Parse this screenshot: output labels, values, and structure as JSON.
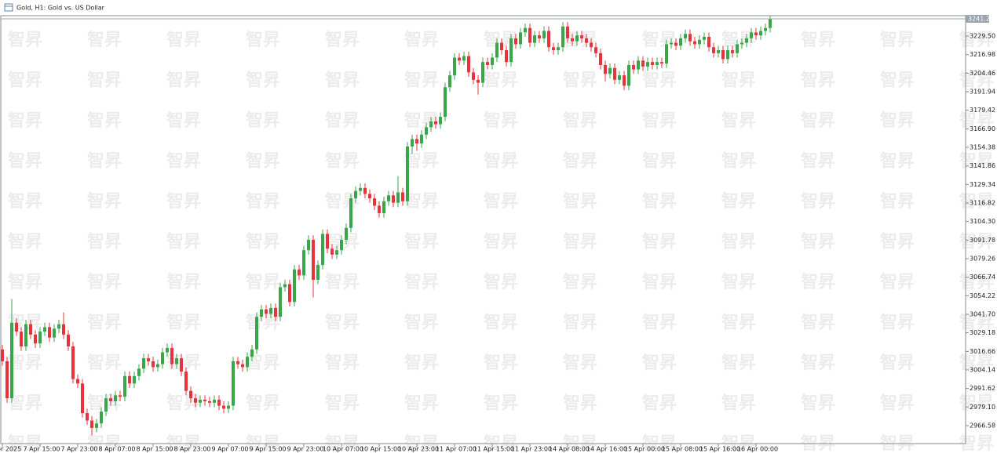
{
  "chart_data": {
    "type": "candlestick",
    "title": "Gold, H1: Gold vs. US Dollar",
    "watermark": "智昇",
    "bull_color": "#3aa64a",
    "bear_color": "#e8323c",
    "ylim": [
      2954.4,
      3243.3
    ],
    "yticks": [
      {
        "value": 3229.5,
        "label": "3229.50"
      },
      3216.98,
      3204.46,
      3191.94,
      3179.42,
      {
        "value": 3166.9,
        "label": "3166.90"
      },
      3154.38,
      3141.86,
      3129.34,
      3116.82,
      {
        "value": 3104.3,
        "label": "3104.30"
      },
      3091.78,
      3079.26,
      3066.74,
      3054.22,
      {
        "value": 3041.7,
        "label": "3041.70"
      },
      3029.18,
      3016.66,
      3004.14,
      2991.62,
      {
        "value": 2979.1,
        "label": "2979.10"
      },
      2966.58
    ],
    "price_line": {
      "value": 3241.2,
      "label": "3241.20"
    },
    "categories": [
      "7 Apr 2025",
      null,
      null,
      null,
      null,
      null,
      null,
      null,
      "7 Apr 15:00",
      null,
      null,
      null,
      null,
      null,
      null,
      null,
      "7 Apr 23:00",
      null,
      null,
      null,
      null,
      null,
      null,
      null,
      "8 Apr 07:00",
      null,
      null,
      null,
      null,
      null,
      null,
      null,
      "8 Apr 15:00",
      null,
      null,
      null,
      null,
      null,
      null,
      null,
      "8 Apr 23:00",
      null,
      null,
      null,
      null,
      null,
      null,
      null,
      "9 Apr 07:00",
      null,
      null,
      null,
      null,
      null,
      null,
      null,
      "9 Apr 15:00",
      null,
      null,
      null,
      null,
      null,
      null,
      null,
      "9 Apr 23:00",
      null,
      null,
      null,
      null,
      null,
      null,
      null,
      "10 Apr 07:00",
      null,
      null,
      null,
      null,
      null,
      null,
      null,
      "10 Apr 15:00",
      null,
      null,
      null,
      null,
      null,
      null,
      null,
      "10 Apr 23:00",
      null,
      null,
      null,
      null,
      null,
      null,
      null,
      "11 Apr 07:00",
      null,
      null,
      null,
      null,
      null,
      null,
      null,
      "11 Apr 15:00",
      null,
      null,
      null,
      null,
      null,
      null,
      null,
      "11 Apr 23:00",
      null,
      null,
      null,
      null,
      null,
      null,
      null,
      "14 Apr 08:00",
      null,
      null,
      null,
      null,
      null,
      null,
      null,
      "14 Apr 16:00",
      null,
      null,
      null,
      null,
      null,
      null,
      null,
      "15 Apr 00:00",
      null,
      null,
      null,
      null,
      null,
      null,
      null,
      "15 Apr 08:00",
      null,
      null,
      null,
      null,
      null,
      null,
      null,
      "15 Apr 16:00",
      null,
      null,
      null,
      null,
      null,
      null,
      null,
      "16 Apr 00:00",
      null,
      null,
      null
    ],
    "open": [
      3018,
      3010,
      2985,
      3036,
      3030,
      3020,
      3035,
      3028,
      3022,
      3030,
      3033,
      3026,
      3032,
      3035,
      3028,
      3020,
      2998,
      2995,
      2975,
      2970,
      2965,
      2968,
      2976,
      2985,
      2983,
      2987,
      2986,
      3000,
      2995,
      3000,
      3005,
      3012,
      3010,
      3006,
      3008,
      3016,
      3019,
      3008,
      3012,
      3003,
      2990,
      2985,
      2982,
      2984,
      2983,
      2982,
      2984,
      2980,
      2978,
      2980,
      3010,
      3008,
      3006,
      3013,
      3018,
      3040,
      3045,
      3042,
      3046,
      3040,
      3060,
      3062,
      3050,
      3072,
      3068,
      3085,
      3092,
      3065,
      3075,
      3096,
      3086,
      3082,
      3085,
      3092,
      3100,
      3120,
      3125,
      3127,
      3123,
      3120,
      3115,
      3110,
      3118,
      3122,
      3117,
      3124,
      3118,
      3155,
      3160,
      3157,
      3163,
      3168,
      3172,
      3170,
      3175,
      3195,
      3203,
      3215,
      3213,
      3216,
      3205,
      3200,
      3198,
      3212,
      3210,
      3215,
      3225,
      3220,
      3212,
      3228,
      3224,
      3232,
      3235,
      3225,
      3230,
      3228,
      3233,
      3222,
      3220,
      3222,
      3236,
      3228,
      3226,
      3230,
      3228,
      3225,
      3222,
      3218,
      3210,
      3204,
      3208,
      3200,
      3203,
      3196,
      3210,
      3207,
      3213,
      3209,
      3212,
      3210,
      3212,
      3211,
      3224,
      3225,
      3223,
      3228,
      3231,
      3226,
      3224,
      3227,
      3229,
      3222,
      3218,
      3220,
      3214,
      3220,
      3218,
      3224,
      3225,
      3228,
      3232,
      3230,
      3233,
      3235
    ],
    "high": [
      3021,
      3013,
      3052,
      3039,
      3033,
      3038,
      3038,
      3031,
      3033,
      3036,
      3036,
      3035,
      3038,
      3043,
      3031,
      3023,
      3001,
      2998,
      2978,
      2973,
      2971,
      2979,
      2988,
      2988,
      2990,
      2990,
      3003,
      3003,
      3003,
      3008,
      3015,
      3015,
      3013,
      3011,
      3019,
      3022,
      3022,
      3015,
      3015,
      3006,
      2993,
      2988,
      2987,
      2987,
      2986,
      2987,
      2987,
      2983,
      2983,
      3013,
      3013,
      3011,
      3016,
      3021,
      3043,
      3048,
      3048,
      3049,
      3049,
      3063,
      3065,
      3065,
      3075,
      3075,
      3088,
      3095,
      3095,
      3078,
      3099,
      3099,
      3089,
      3088,
      3095,
      3103,
      3123,
      3128,
      3130,
      3130,
      3126,
      3123,
      3118,
      3121,
      3125,
      3125,
      3135,
      3127,
      3158,
      3163,
      3163,
      3166,
      3171,
      3175,
      3175,
      3178,
      3198,
      3206,
      3218,
      3218,
      3219,
      3219,
      3208,
      3203,
      3215,
      3215,
      3218,
      3228,
      3228,
      3223,
      3231,
      3231,
      3235,
      3238,
      3238,
      3233,
      3233,
      3236,
      3236,
      3225,
      3225,
      3239,
      3239,
      3231,
      3233,
      3233,
      3231,
      3228,
      3225,
      3221,
      3213,
      3211,
      3211,
      3206,
      3206,
      3213,
      3213,
      3216,
      3216,
      3215,
      3215,
      3215,
      3215,
      3227,
      3228,
      3228,
      3231,
      3234,
      3234,
      3229,
      3230,
      3232,
      3232,
      3225,
      3223,
      3223,
      3223,
      3223,
      3227,
      3228,
      3231,
      3235,
      3235,
      3236,
      3238,
      3243
    ],
    "low": [
      3007,
      2982,
      2982,
      3027,
      3017,
      3017,
      3025,
      3019,
      3019,
      3027,
      3023,
      3023,
      3029,
      3025,
      3017,
      2995,
      2992,
      2972,
      2967,
      2960,
      2962,
      2965,
      2973,
      2980,
      2980,
      2983,
      2983,
      2992,
      2992,
      2997,
      3002,
      3007,
      3003,
      3003,
      3005,
      3013,
      3005,
      3005,
      3000,
      2987,
      2982,
      2979,
      2979,
      2980,
      2979,
      2979,
      2977,
      2975,
      2975,
      2977,
      3005,
      3003,
      3003,
      3010,
      3015,
      3037,
      3039,
      3039,
      3037,
      3037,
      3057,
      3047,
      3047,
      3065,
      3065,
      3082,
      3053,
      3062,
      3072,
      3083,
      3079,
      3079,
      3082,
      3089,
      3097,
      3117,
      3122,
      3120,
      3117,
      3112,
      3107,
      3107,
      3115,
      3114,
      3114,
      3115,
      3115,
      3150,
      3152,
      3154,
      3160,
      3165,
      3167,
      3167,
      3172,
      3192,
      3200,
      3210,
      3210,
      3202,
      3197,
      3190,
      3195,
      3207,
      3207,
      3212,
      3217,
      3209,
      3209,
      3221,
      3221,
      3229,
      3222,
      3222,
      3225,
      3225,
      3219,
      3217,
      3217,
      3219,
      3225,
      3223,
      3223,
      3225,
      3222,
      3219,
      3215,
      3207,
      3199,
      3201,
      3197,
      3197,
      3193,
      3193,
      3204,
      3204,
      3206,
      3206,
      3207,
      3207,
      3208,
      3208,
      3221,
      3220,
      3220,
      3225,
      3223,
      3221,
      3221,
      3224,
      3219,
      3215,
      3215,
      3211,
      3211,
      3215,
      3215,
      3221,
      3222,
      3225,
      3227,
      3227,
      3230,
      3232
    ],
    "close": [
      3010,
      2985,
      3036,
      3030,
      3020,
      3035,
      3028,
      3022,
      3030,
      3033,
      3026,
      3032,
      3035,
      3028,
      3020,
      2998,
      2995,
      2975,
      2970,
      2965,
      2968,
      2976,
      2985,
      2983,
      2987,
      2986,
      3000,
      2995,
      3000,
      3005,
      3012,
      3010,
      3006,
      3008,
      3016,
      3019,
      3008,
      3012,
      3003,
      2990,
      2985,
      2982,
      2984,
      2983,
      2982,
      2984,
      2980,
      2978,
      2980,
      3010,
      3008,
      3006,
      3013,
      3018,
      3040,
      3045,
      3042,
      3046,
      3040,
      3060,
      3062,
      3050,
      3072,
      3068,
      3085,
      3092,
      3065,
      3075,
      3096,
      3086,
      3082,
      3085,
      3092,
      3100,
      3120,
      3125,
      3127,
      3123,
      3120,
      3115,
      3110,
      3118,
      3122,
      3117,
      3124,
      3118,
      3155,
      3160,
      3157,
      3163,
      3168,
      3172,
      3170,
      3175,
      3195,
      3203,
      3215,
      3213,
      3216,
      3205,
      3200,
      3198,
      3212,
      3210,
      3215,
      3225,
      3220,
      3212,
      3228,
      3224,
      3232,
      3235,
      3225,
      3230,
      3228,
      3233,
      3222,
      3220,
      3222,
      3236,
      3228,
      3226,
      3230,
      3228,
      3225,
      3222,
      3218,
      3210,
      3204,
      3208,
      3200,
      3203,
      3196,
      3210,
      3207,
      3213,
      3209,
      3212,
      3210,
      3212,
      3211,
      3224,
      3225,
      3223,
      3228,
      3231,
      3226,
      3224,
      3227,
      3229,
      3222,
      3218,
      3220,
      3214,
      3220,
      3218,
      3224,
      3225,
      3228,
      3232,
      3230,
      3233,
      3235,
      3241.2
    ]
  }
}
